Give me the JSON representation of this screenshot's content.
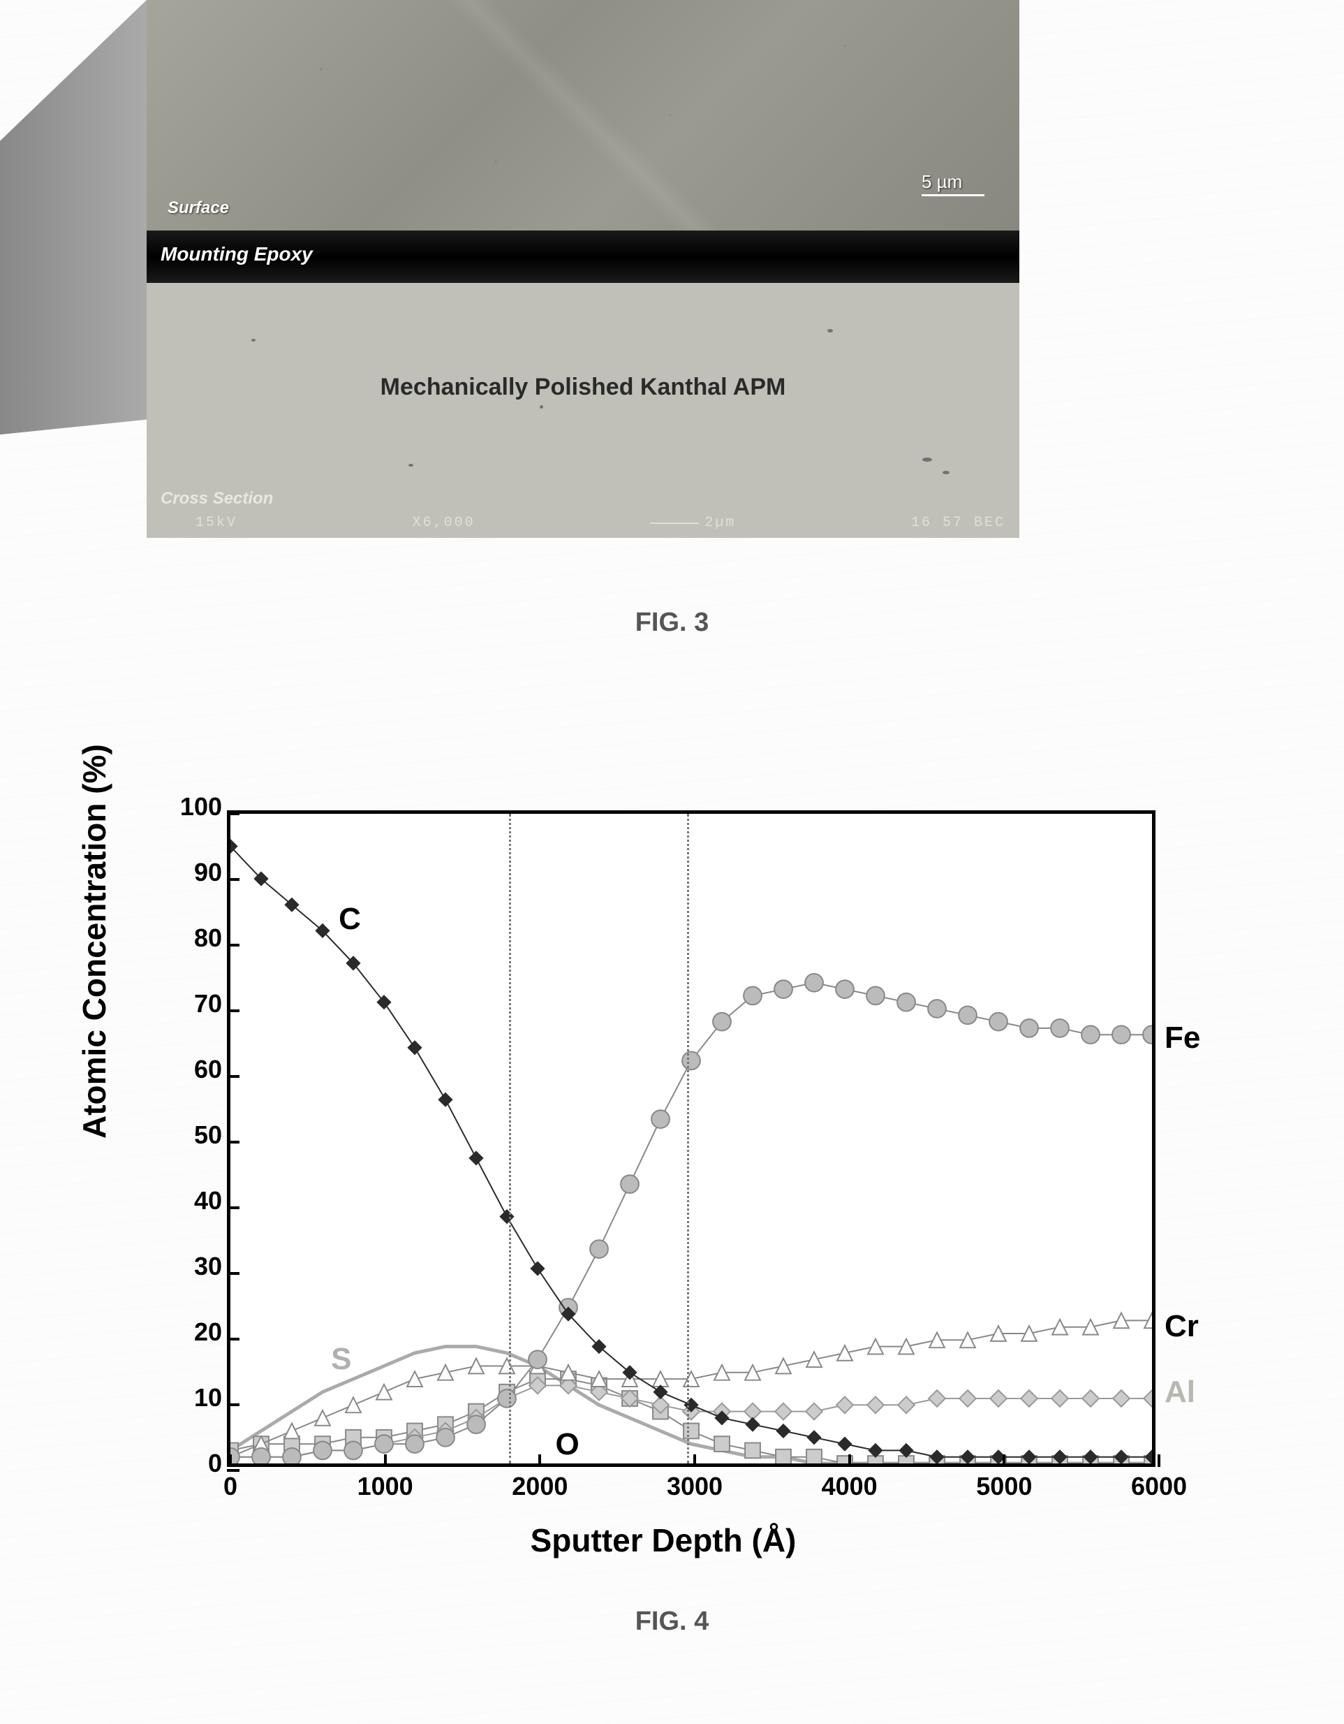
{
  "fig3": {
    "caption": "FIG. 3",
    "surface_label": "Surface",
    "epoxy_label": "Mounting Epoxy",
    "polished_label": "Mechanically Polished Kanthal APM",
    "cross_section_label": "Cross Section",
    "top_scale": "5 µm",
    "sem_voltage": "15kV",
    "sem_mag": "X6,000",
    "sem_scale": "2µm",
    "sem_id": "16 57 BEC",
    "colors": {
      "surface": "#9a9a90",
      "epoxy": "#0a0a0a",
      "polished": "#c0c0b8",
      "side": "#999999"
    }
  },
  "fig4": {
    "caption": "FIG. 4",
    "ylabel": "Atomic Concentration (%)",
    "xlabel": "Sputter Depth (Å)",
    "xlim": [
      0,
      6000
    ],
    "ylim": [
      0,
      100
    ],
    "xtick_step": 1000,
    "ytick_step": 10,
    "xticks": [
      0,
      1000,
      2000,
      3000,
      4000,
      5000,
      6000
    ],
    "yticks": [
      0,
      10,
      20,
      30,
      40,
      50,
      60,
      70,
      80,
      90,
      100
    ],
    "vlines": [
      1800,
      2950
    ],
    "vline_color": "#777777",
    "title_fontsize": 46,
    "tick_fontsize": 36,
    "label_fontsize": 44,
    "background_color": "#ffffff",
    "border_color": "#000000",
    "border_width": 5,
    "series": {
      "C": {
        "label": "C",
        "label_pos": [
          700,
          84
        ],
        "color": "#2a2a2a",
        "marker": "diamond-solid",
        "marker_size": 10,
        "line_width": 2,
        "data": [
          [
            0,
            95
          ],
          [
            200,
            90
          ],
          [
            400,
            86
          ],
          [
            600,
            82
          ],
          [
            800,
            77
          ],
          [
            1000,
            71
          ],
          [
            1200,
            64
          ],
          [
            1400,
            56
          ],
          [
            1600,
            47
          ],
          [
            1800,
            38
          ],
          [
            2000,
            30
          ],
          [
            2200,
            23
          ],
          [
            2400,
            18
          ],
          [
            2600,
            14
          ],
          [
            2800,
            11
          ],
          [
            3000,
            9
          ],
          [
            3200,
            7
          ],
          [
            3400,
            6
          ],
          [
            3600,
            5
          ],
          [
            3800,
            4
          ],
          [
            4000,
            3
          ],
          [
            4200,
            2
          ],
          [
            4400,
            2
          ],
          [
            4600,
            1
          ],
          [
            4800,
            1
          ],
          [
            5000,
            1
          ],
          [
            5200,
            1
          ],
          [
            5400,
            1
          ],
          [
            5600,
            1
          ],
          [
            5800,
            1
          ],
          [
            6000,
            1
          ]
        ]
      },
      "Fe": {
        "label": "Fe",
        "label_pos": [
          6050,
          66
        ],
        "color": "#888888",
        "marker": "circle",
        "marker_fill": "#bbbbbb",
        "marker_size": 13,
        "line_width": 2,
        "data": [
          [
            0,
            1
          ],
          [
            200,
            1
          ],
          [
            400,
            1
          ],
          [
            600,
            2
          ],
          [
            800,
            2
          ],
          [
            1000,
            3
          ],
          [
            1200,
            3
          ],
          [
            1400,
            4
          ],
          [
            1600,
            6
          ],
          [
            1800,
            10
          ],
          [
            2000,
            16
          ],
          [
            2200,
            24
          ],
          [
            2400,
            33
          ],
          [
            2600,
            43
          ],
          [
            2800,
            53
          ],
          [
            3000,
            62
          ],
          [
            3200,
            68
          ],
          [
            3400,
            72
          ],
          [
            3600,
            73
          ],
          [
            3800,
            74
          ],
          [
            4000,
            73
          ],
          [
            4200,
            72
          ],
          [
            4400,
            71
          ],
          [
            4600,
            70
          ],
          [
            4800,
            69
          ],
          [
            5000,
            68
          ],
          [
            5200,
            67
          ],
          [
            5400,
            67
          ],
          [
            5600,
            66
          ],
          [
            5800,
            66
          ],
          [
            6000,
            66
          ]
        ]
      },
      "Cr": {
        "label": "Cr",
        "label_pos": [
          6050,
          22
        ],
        "color": "#888888",
        "marker": "triangle",
        "marker_fill": "#ffffff",
        "marker_size": 11,
        "line_width": 2,
        "data": [
          [
            0,
            1
          ],
          [
            200,
            3
          ],
          [
            400,
            5
          ],
          [
            600,
            7
          ],
          [
            800,
            9
          ],
          [
            1000,
            11
          ],
          [
            1200,
            13
          ],
          [
            1400,
            14
          ],
          [
            1600,
            15
          ],
          [
            1800,
            15
          ],
          [
            2000,
            15
          ],
          [
            2200,
            14
          ],
          [
            2400,
            13
          ],
          [
            2600,
            13
          ],
          [
            2800,
            13
          ],
          [
            3000,
            13
          ],
          [
            3200,
            14
          ],
          [
            3400,
            14
          ],
          [
            3600,
            15
          ],
          [
            3800,
            16
          ],
          [
            4000,
            17
          ],
          [
            4200,
            18
          ],
          [
            4400,
            18
          ],
          [
            4600,
            19
          ],
          [
            4800,
            19
          ],
          [
            5000,
            20
          ],
          [
            5200,
            20
          ],
          [
            5400,
            21
          ],
          [
            5600,
            21
          ],
          [
            5800,
            22
          ],
          [
            6000,
            22
          ]
        ]
      },
      "Al": {
        "label": "Al",
        "label_pos": [
          6050,
          12
        ],
        "label_color": "#b8b8b0",
        "color": "#999999",
        "marker": "diamond",
        "marker_fill": "#cccccc",
        "marker_size": 12,
        "line_width": 2,
        "data": [
          [
            0,
            1
          ],
          [
            200,
            1
          ],
          [
            400,
            1
          ],
          [
            600,
            2
          ],
          [
            800,
            2
          ],
          [
            1000,
            3
          ],
          [
            1200,
            4
          ],
          [
            1400,
            5
          ],
          [
            1600,
            7
          ],
          [
            1800,
            10
          ],
          [
            2000,
            12
          ],
          [
            2200,
            12
          ],
          [
            2400,
            11
          ],
          [
            2600,
            10
          ],
          [
            2800,
            9
          ],
          [
            3000,
            8
          ],
          [
            3200,
            8
          ],
          [
            3400,
            8
          ],
          [
            3600,
            8
          ],
          [
            3800,
            8
          ],
          [
            4000,
            9
          ],
          [
            4200,
            9
          ],
          [
            4400,
            9
          ],
          [
            4600,
            10
          ],
          [
            4800,
            10
          ],
          [
            5000,
            10
          ],
          [
            5200,
            10
          ],
          [
            5400,
            10
          ],
          [
            5600,
            10
          ],
          [
            5800,
            10
          ],
          [
            6000,
            10
          ]
        ]
      },
      "S": {
        "label": "S",
        "label_pos": [
          650,
          17
        ],
        "label_color": "#b0b0b0",
        "color": "#aaaaaa",
        "marker": "none",
        "line_width": 5,
        "data": [
          [
            0,
            2
          ],
          [
            200,
            5
          ],
          [
            400,
            8
          ],
          [
            600,
            11
          ],
          [
            800,
            13
          ],
          [
            1000,
            15
          ],
          [
            1200,
            17
          ],
          [
            1400,
            18
          ],
          [
            1600,
            18
          ],
          [
            1800,
            17
          ],
          [
            2000,
            15
          ],
          [
            2200,
            12
          ],
          [
            2400,
            9
          ],
          [
            2600,
            7
          ],
          [
            2800,
            5
          ],
          [
            3000,
            3
          ],
          [
            3200,
            2
          ],
          [
            3400,
            1
          ],
          [
            3600,
            1
          ],
          [
            3800,
            0
          ],
          [
            4000,
            0
          ],
          [
            4200,
            0
          ],
          [
            4400,
            0
          ],
          [
            4600,
            0
          ],
          [
            4800,
            0
          ],
          [
            5000,
            0
          ],
          [
            5200,
            0
          ],
          [
            5400,
            0
          ],
          [
            5600,
            0
          ],
          [
            5800,
            0
          ],
          [
            6000,
            0
          ]
        ]
      },
      "O": {
        "label": "O",
        "label_pos": [
          2100,
          4
        ],
        "color": "#888888",
        "marker": "square",
        "marker_fill": "#cccccc",
        "marker_size": 11,
        "line_width": 2,
        "data": [
          [
            0,
            2
          ],
          [
            200,
            3
          ],
          [
            400,
            3
          ],
          [
            600,
            3
          ],
          [
            800,
            4
          ],
          [
            1000,
            4
          ],
          [
            1200,
            5
          ],
          [
            1400,
            6
          ],
          [
            1600,
            8
          ],
          [
            1800,
            11
          ],
          [
            2000,
            13
          ],
          [
            2200,
            13
          ],
          [
            2400,
            12
          ],
          [
            2600,
            10
          ],
          [
            2800,
            8
          ],
          [
            3000,
            5
          ],
          [
            3200,
            3
          ],
          [
            3400,
            2
          ],
          [
            3600,
            1
          ],
          [
            3800,
            1
          ],
          [
            4000,
            0
          ],
          [
            4200,
            0
          ],
          [
            4400,
            0
          ],
          [
            4600,
            0
          ],
          [
            4800,
            0
          ],
          [
            5000,
            0
          ],
          [
            5200,
            0
          ],
          [
            5400,
            0
          ],
          [
            5600,
            0
          ],
          [
            5800,
            0
          ],
          [
            6000,
            0
          ]
        ]
      }
    }
  }
}
